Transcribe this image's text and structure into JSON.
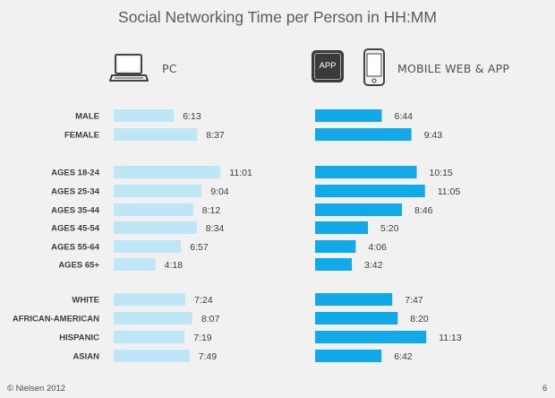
{
  "chart_data": {
    "type": "bar",
    "title": "Social Networking Time per Person in HH:MM",
    "panels": [
      {
        "name": "PC",
        "color": "#bfe6f7"
      },
      {
        "name": "MOBILE WEB & APP",
        "color": "#11a9e8"
      }
    ],
    "groups": [
      [
        "MALE",
        "FEMALE"
      ],
      [
        "AGES 18-24",
        "AGES 25-34",
        "AGES 35-44",
        "AGES 45-54",
        "AGES 55-64",
        "AGES 65+"
      ],
      [
        "WHITE",
        "AFRICAN-AMERICAN",
        "HISPANIC",
        "ASIAN"
      ]
    ],
    "series": [
      {
        "name": "PC",
        "values": [
          "6:13",
          "8:37",
          "11:01",
          "9:04",
          "8:12",
          "8:34",
          "6:57",
          "4:18",
          "7:24",
          "8:07",
          "7:19",
          "7:49"
        ]
      },
      {
        "name": "MOBILE WEB & APP",
        "values": [
          "6:44",
          "9:43",
          "10:15",
          "11:05",
          "8:46",
          "5:20",
          "4:06",
          "3:42",
          "7:47",
          "8:20",
          "11:13",
          "6:42"
        ]
      }
    ]
  },
  "icons": {
    "pc": "laptop-icon",
    "app": "app-icon",
    "mobile": "smartphone-icon"
  },
  "app_icon_text": "APP",
  "footer": {
    "copyright": "© Nielsen 2012",
    "page_number": "6"
  }
}
